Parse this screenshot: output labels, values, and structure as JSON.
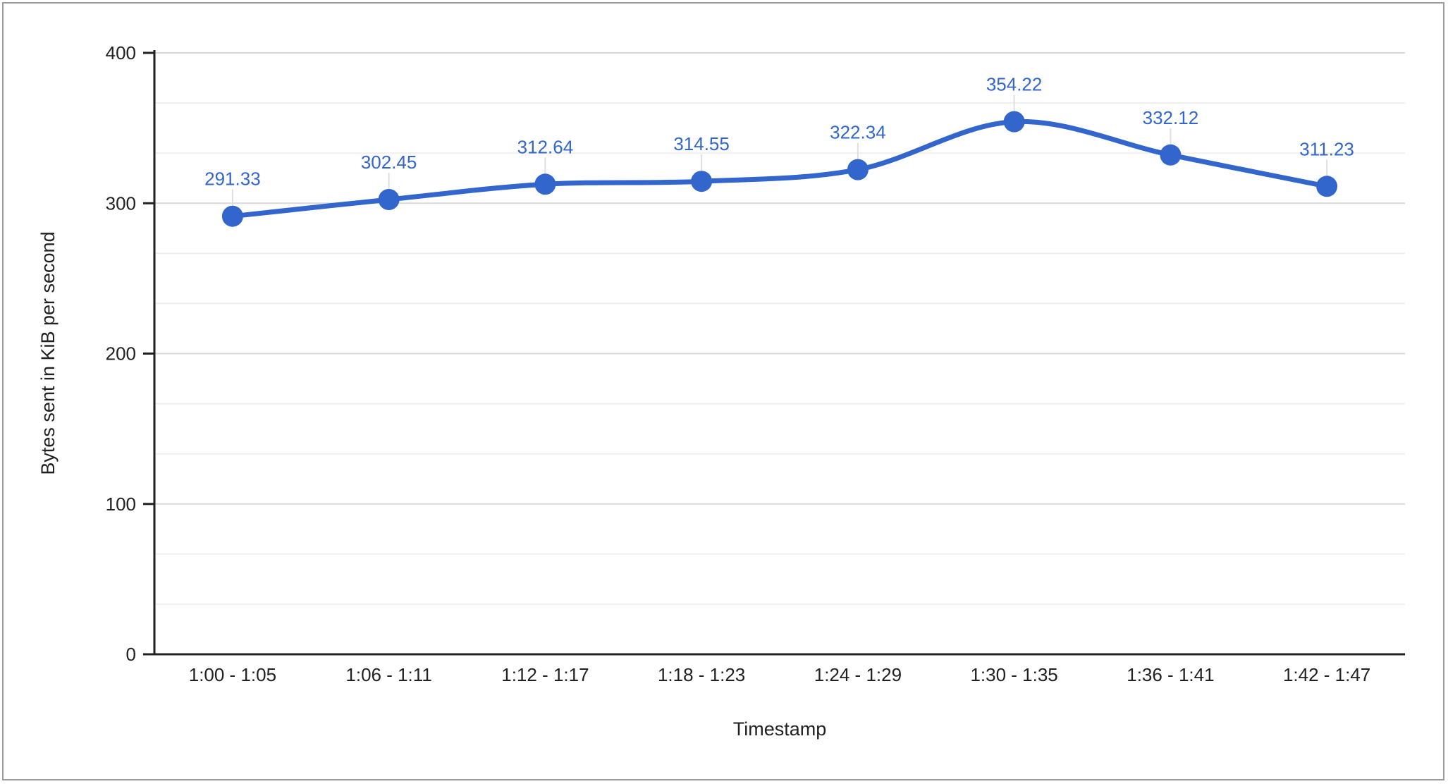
{
  "chart_data": {
    "type": "line",
    "title": "",
    "categories": [
      "1:00 - 1:05",
      "1:06 - 1:11",
      "1:12 - 1:17",
      "1:18 - 1:23",
      "1:24 - 1:29",
      "1:30 - 1:35",
      "1:36 - 1:41",
      "1:42 - 1:47"
    ],
    "values": [
      291.33,
      302.45,
      312.64,
      314.55,
      322.34,
      354.22,
      332.12,
      311.23
    ],
    "data_labels": [
      "291.33",
      "302.45",
      "312.64",
      "314.55",
      "322.34",
      "354.22",
      "332.12",
      "311.23"
    ],
    "xlabel": "Timestamp",
    "ylabel": "Bytes sent in KiB per second",
    "ylim": [
      0,
      400
    ],
    "y_ticks": [
      "0",
      "100",
      "200",
      "300",
      "400"
    ],
    "y_major_step": 100,
    "minor_divisions_per_major": 3,
    "grid": true,
    "legend_position": "none",
    "smooth_line": true,
    "point_markers": true,
    "colors": {
      "series": "#3366cc",
      "data_label": "#3366cc",
      "axis_line": "#212121",
      "tick_label": "#212121",
      "axis_title": "#212121",
      "grid_major": "#d9d9d9",
      "grid_minor": "#efefef",
      "leader_line": "#e0e0e0",
      "background": "#ffffff"
    }
  },
  "frame": {
    "border_color": "#9b9b9b"
  }
}
